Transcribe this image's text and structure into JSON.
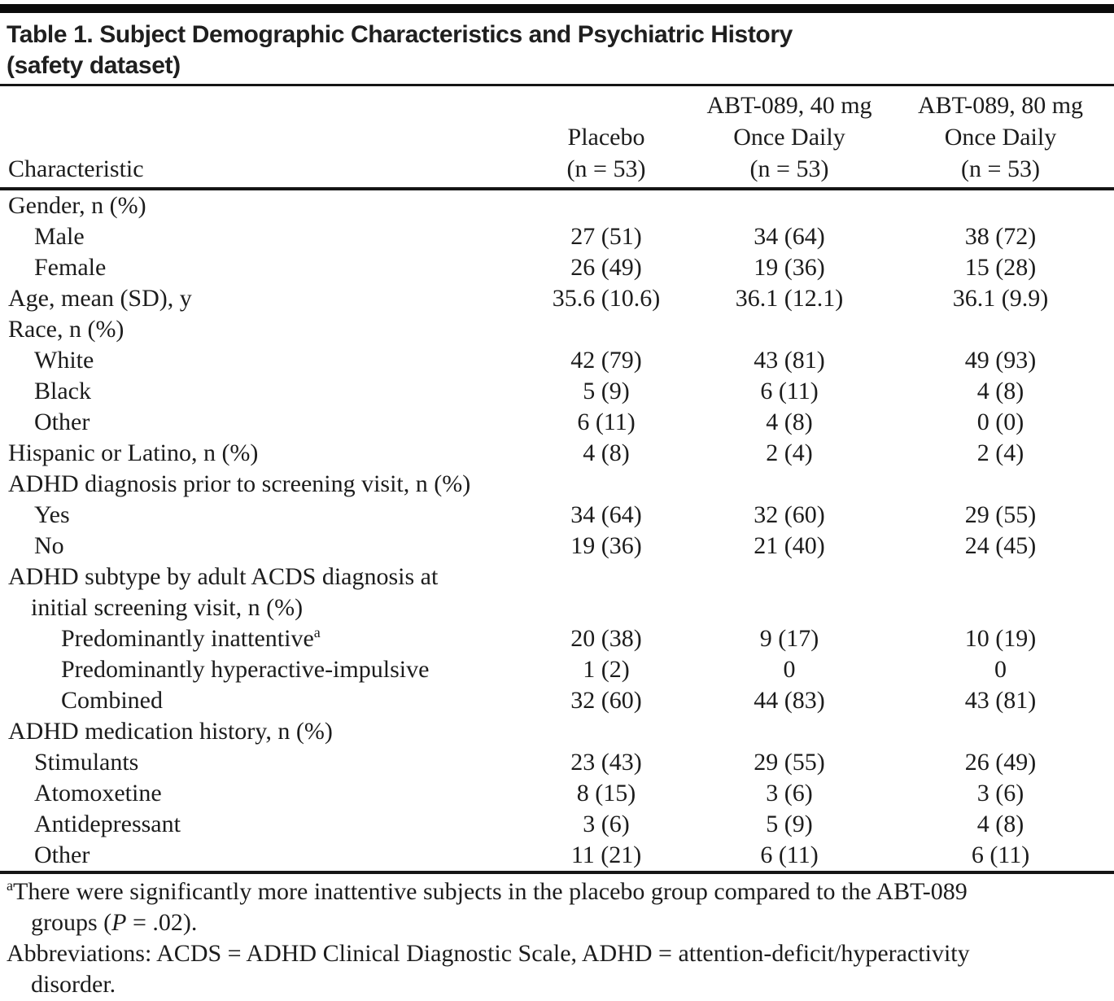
{
  "table": {
    "title": {
      "line1": "Table 1. Subject Demographic Characteristics and Psychiatric History",
      "line2": "(safety dataset)"
    },
    "header": {
      "characteristic": "Characteristic",
      "groups": [
        {
          "lines": [
            "Placebo",
            "(n = 53)"
          ]
        },
        {
          "lines": [
            "ABT-089, 40 mg",
            "Once Daily",
            "(n = 53)"
          ]
        },
        {
          "lines": [
            "ABT-089, 80 mg",
            "Once Daily",
            "(n = 53)"
          ]
        }
      ]
    },
    "rows": [
      {
        "label": "Gender, n (%)",
        "indent": "0",
        "values": [
          "",
          "",
          ""
        ]
      },
      {
        "label": "Male",
        "indent": "1",
        "values": [
          "27 (51)",
          "34 (64)",
          "38 (72)"
        ]
      },
      {
        "label": "Female",
        "indent": "1",
        "values": [
          "26 (49)",
          "19 (36)",
          "15 (28)"
        ]
      },
      {
        "label": "Age, mean (SD), y",
        "indent": "0",
        "values": [
          "35.6 (10.6)",
          "36.1 (12.1)",
          "36.1 (9.9)"
        ]
      },
      {
        "label": "Race, n (%)",
        "indent": "0",
        "values": [
          "",
          "",
          ""
        ]
      },
      {
        "label": "White",
        "indent": "1",
        "values": [
          "42 (79)",
          "43 (81)",
          "49 (93)"
        ]
      },
      {
        "label": "Black",
        "indent": "1",
        "values": [
          "5 (9)",
          "6 (11)",
          "4 (8)"
        ]
      },
      {
        "label": "Other",
        "indent": "1",
        "values": [
          "6 (11)",
          "4 (8)",
          "0 (0)"
        ]
      },
      {
        "label": "Hispanic or Latino, n (%)",
        "indent": "0",
        "values": [
          "4 (8)",
          "2 (4)",
          "2 (4)"
        ]
      },
      {
        "label": "ADHD diagnosis prior to screening visit, n (%)",
        "indent": "0",
        "values": [
          "",
          "",
          ""
        ]
      },
      {
        "label": "Yes",
        "indent": "1",
        "values": [
          "34 (64)",
          "32 (60)",
          "29 (55)"
        ]
      },
      {
        "label": "No",
        "indent": "1",
        "values": [
          "19 (36)",
          "21 (40)",
          "24 (45)"
        ]
      },
      {
        "label": "ADHD subtype by adult ACDS diagnosis at",
        "indent": "0",
        "values": [
          "",
          "",
          ""
        ]
      },
      {
        "label": "initial screening visit, n (%)",
        "indent": "c",
        "values": [
          "",
          "",
          ""
        ]
      },
      {
        "label": "Predominantly inattentive",
        "sup": "a",
        "indent": "2",
        "values": [
          "20 (38)",
          "9 (17)",
          "10 (19)"
        ]
      },
      {
        "label": "Predominantly hyperactive-impulsive",
        "indent": "2",
        "values": [
          "1 (2)",
          "0",
          "0"
        ]
      },
      {
        "label": "Combined",
        "indent": "2",
        "values": [
          "32 (60)",
          "44 (83)",
          "43 (81)"
        ]
      },
      {
        "label": "ADHD medication history, n (%)",
        "indent": "0",
        "values": [
          "",
          "",
          ""
        ]
      },
      {
        "label": "Stimulants",
        "indent": "1",
        "values": [
          "23 (43)",
          "29 (55)",
          "26 (49)"
        ]
      },
      {
        "label": "Atomoxetine",
        "indent": "1",
        "values": [
          "8 (15)",
          "3 (6)",
          "3 (6)"
        ]
      },
      {
        "label": "Antidepressant",
        "indent": "1",
        "values": [
          "3 (6)",
          "5 (9)",
          "4 (8)"
        ]
      },
      {
        "label": "Other",
        "indent": "1",
        "values": [
          "11 (21)",
          "6 (11)",
          "6 (11)"
        ]
      }
    ],
    "footnotes": [
      {
        "segments": [
          {
            "text": "a",
            "sup": true
          },
          {
            "text": "There were significantly more inattentive subjects in the placebo group compared to the ABT-089"
          },
          {
            "br": true
          },
          {
            "text": "groups ("
          },
          {
            "text": "P",
            "italic": true
          },
          {
            "text": " = .02)."
          }
        ]
      },
      {
        "segments": [
          {
            "text": "Abbreviations: ACDS = ADHD Clinical Diagnostic Scale, ADHD = attention-deficit/hyperactivity"
          },
          {
            "br": true
          },
          {
            "text": "disorder."
          }
        ]
      }
    ]
  },
  "colors": {
    "text": "#1c1c1c",
    "rule": "#151515",
    "top_bar": "#0b0b0b"
  }
}
